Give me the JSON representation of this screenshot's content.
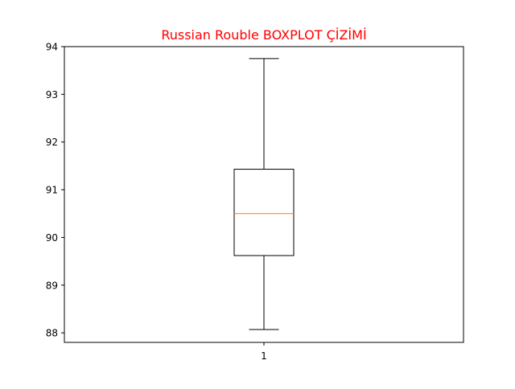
{
  "chart_data": {
    "type": "boxplot",
    "title": "Russian Rouble BOXPLOT ÇİZİMİ",
    "title_color": "#ff0000",
    "xlabel": "",
    "ylabel": "",
    "categories": [
      "1"
    ],
    "ylim": [
      87.8,
      94.0
    ],
    "yticks": [
      88,
      89,
      90,
      91,
      92,
      93,
      94
    ],
    "ytick_labels": [
      "88",
      "89",
      "90",
      "91",
      "92",
      "93",
      "94"
    ],
    "grid": false,
    "boxes": [
      {
        "category": "1",
        "whisker_low": 88.07,
        "q1": 89.62,
        "median": 90.5,
        "q3": 91.43,
        "whisker_high": 93.75
      }
    ],
    "colors": {
      "box": "#000000",
      "median": "#ff7f0e",
      "whisker": "#000000",
      "axes": "#000000"
    }
  }
}
